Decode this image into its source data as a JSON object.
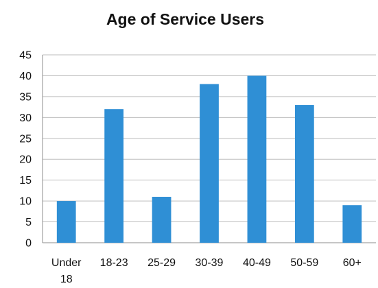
{
  "chart_data": {
    "type": "bar",
    "title": "Age of Service Users",
    "xlabel": "",
    "ylabel": "",
    "categories": [
      "Under 18",
      "18-23",
      "25-29",
      "30-39",
      "40-49",
      "50-59",
      "60+"
    ],
    "category_lines": [
      [
        "Under",
        "18"
      ],
      [
        "18-23"
      ],
      [
        "25-29"
      ],
      [
        "30-39"
      ],
      [
        "40-49"
      ],
      [
        "50-59"
      ],
      [
        "60+"
      ]
    ],
    "values": [
      10,
      32,
      11,
      38,
      40,
      33,
      9
    ],
    "ylim": [
      0,
      45
    ],
    "yticks": [
      0,
      5,
      10,
      15,
      20,
      25,
      30,
      35,
      40,
      45
    ],
    "grid": true,
    "legend": "none",
    "bar_color": "#2f8fd5"
  }
}
